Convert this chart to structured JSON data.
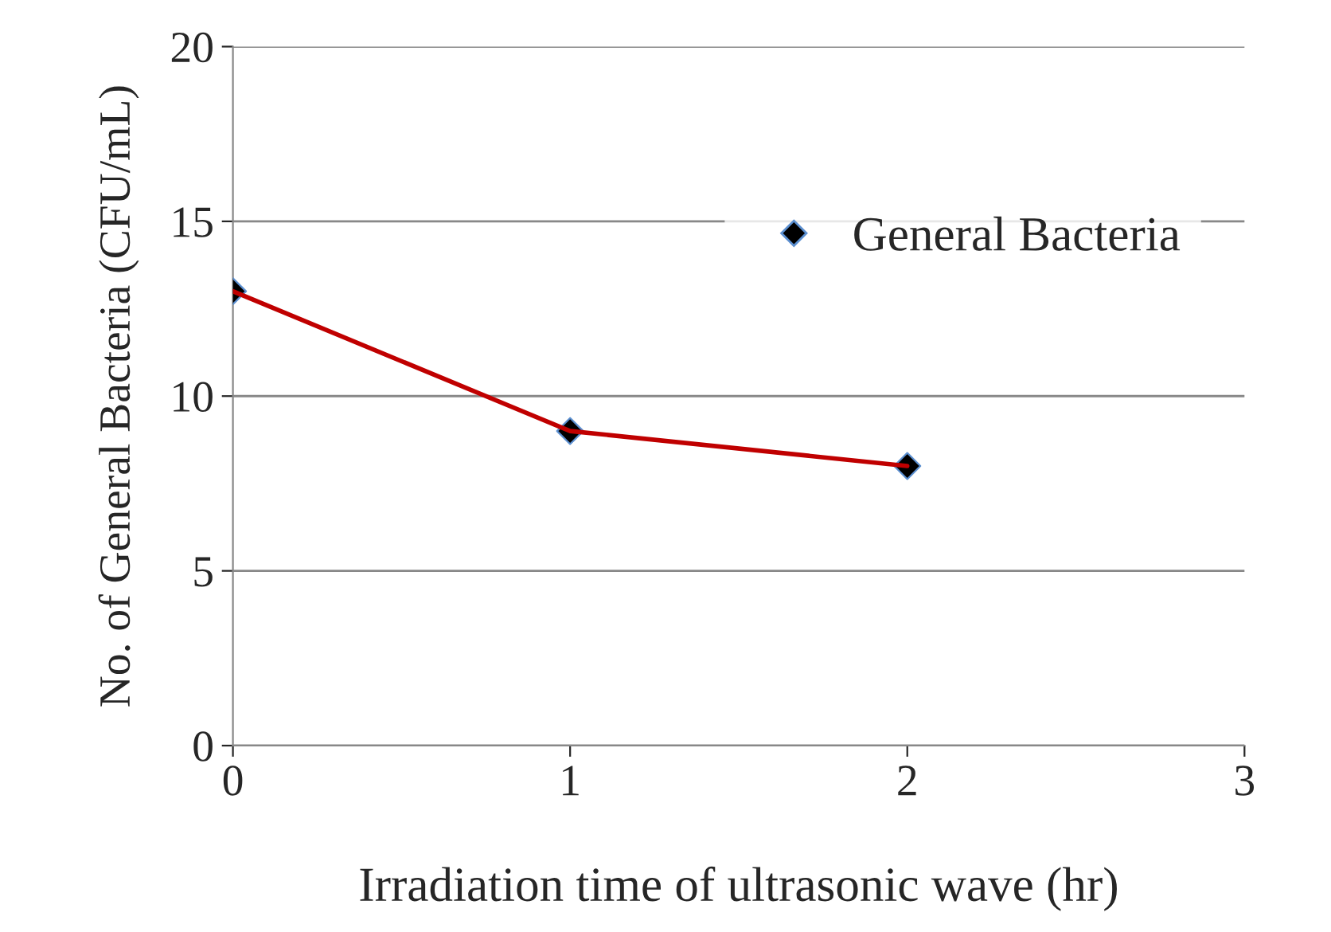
{
  "chart_data": {
    "type": "scatter",
    "xlabel": "Irradiation time of ultrasonic wave (hr)",
    "ylabel": "No. of General Bacteria (CFU/mL)",
    "x": [
      0,
      1,
      2
    ],
    "series": [
      {
        "name": "General Bacteria",
        "color": "#000000",
        "values": [
          13,
          9,
          8
        ],
        "marker": "diamond"
      },
      {
        "type": "line",
        "color": "#c00000",
        "values": [
          13,
          9,
          8
        ],
        "marker": "none"
      }
    ],
    "xlim": [
      0,
      3
    ],
    "xticks": [
      0,
      1,
      2,
      3
    ],
    "ylim": [
      0,
      20
    ],
    "yticks": [
      0,
      5,
      10,
      15,
      20
    ],
    "grid": "y",
    "legend": "top right"
  }
}
